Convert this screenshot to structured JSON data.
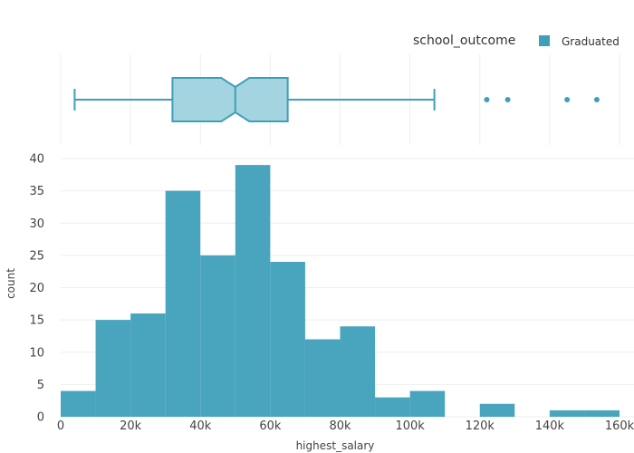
{
  "chart_data": [
    {
      "type": "box",
      "orientation": "horizontal",
      "notched": true,
      "series": [
        {
          "name": "Graduated",
          "whisker_low": 4000,
          "q1": 32000,
          "notch_low": 46000,
          "median": 50000,
          "notch_high": 54000,
          "q3": 65000,
          "whisker_high": 107000,
          "outliers": [
            122000,
            128000,
            145000,
            153500
          ]
        }
      ],
      "color": "#3f9fba"
    },
    {
      "type": "bar",
      "subtype": "histogram",
      "bin_width": 10000,
      "bins": [
        {
          "x0": 0,
          "x1": 10000,
          "count": 4
        },
        {
          "x0": 10000,
          "x1": 20000,
          "count": 15
        },
        {
          "x0": 20000,
          "x1": 30000,
          "count": 16
        },
        {
          "x0": 30000,
          "x1": 40000,
          "count": 35
        },
        {
          "x0": 40000,
          "x1": 50000,
          "count": 25
        },
        {
          "x0": 50000,
          "x1": 60000,
          "count": 39
        },
        {
          "x0": 60000,
          "x1": 70000,
          "count": 24
        },
        {
          "x0": 70000,
          "x1": 80000,
          "count": 12
        },
        {
          "x0": 80000,
          "x1": 90000,
          "count": 14
        },
        {
          "x0": 90000,
          "x1": 100000,
          "count": 3
        },
        {
          "x0": 100000,
          "x1": 110000,
          "count": 4
        },
        {
          "x0": 110000,
          "x1": 120000,
          "count": 0
        },
        {
          "x0": 120000,
          "x1": 130000,
          "count": 2
        },
        {
          "x0": 130000,
          "x1": 140000,
          "count": 0
        },
        {
          "x0": 140000,
          "x1": 150000,
          "count": 1
        },
        {
          "x0": 150000,
          "x1": 160000,
          "count": 1
        }
      ],
      "xlabel": "highest_salary",
      "ylabel": "count",
      "xlim": [
        0,
        160000
      ],
      "ylim": [
        0,
        40
      ],
      "x_ticks": [
        0,
        20000,
        40000,
        60000,
        80000,
        100000,
        120000,
        140000,
        160000
      ],
      "x_tick_labels": [
        "0",
        "20k",
        "40k",
        "60k",
        "80k",
        "100k",
        "120k",
        "140k",
        "160k"
      ],
      "y_ticks": [
        0,
        5,
        10,
        15,
        20,
        25,
        30,
        35,
        40
      ],
      "y_tick_labels": [
        "0",
        "5",
        "10",
        "15",
        "20",
        "25",
        "30",
        "35",
        "40"
      ],
      "grid": true,
      "color": "#3f9fba"
    }
  ],
  "legend": {
    "title": "school_outcome",
    "items": [
      {
        "label": "Graduated",
        "color": "#3f9fba"
      }
    ],
    "placement": "top-right"
  },
  "colors": {
    "bar": "#3f9fba",
    "box_fill": "#a3d4e0",
    "box_stroke": "#3f9fba",
    "grid": "#eeeeee"
  }
}
